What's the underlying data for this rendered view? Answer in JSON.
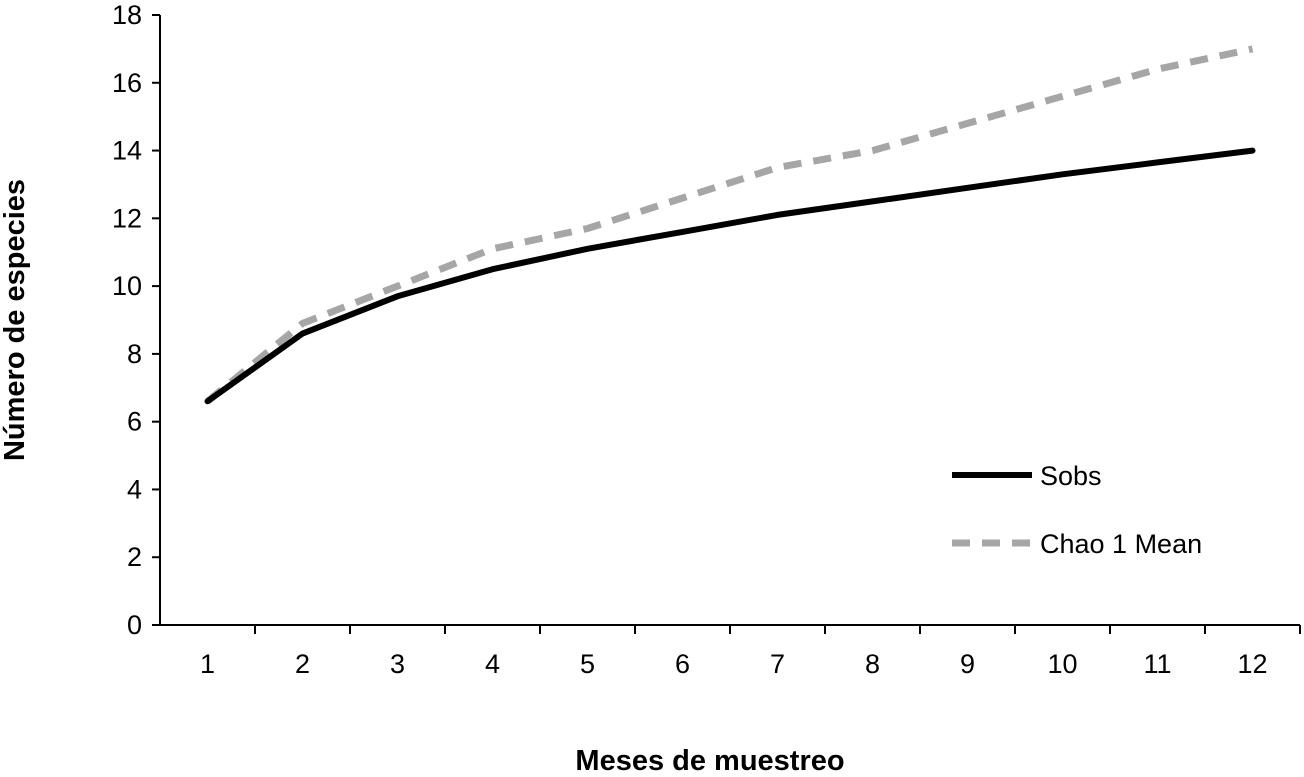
{
  "chart_data": {
    "type": "line",
    "title": "",
    "xlabel": "Meses de muestreo",
    "ylabel": "Número de especies",
    "x": [
      1,
      2,
      3,
      4,
      5,
      6,
      7,
      8,
      9,
      10,
      11,
      12
    ],
    "ylim": [
      0,
      18
    ],
    "yticks": [
      0,
      2,
      4,
      6,
      8,
      10,
      12,
      14,
      16,
      18
    ],
    "grid": false,
    "legend_position": "bottom-right",
    "series": [
      {
        "name": "Sobs",
        "values": [
          6.6,
          8.6,
          9.7,
          10.5,
          11.1,
          11.6,
          12.1,
          12.5,
          12.9,
          13.3,
          13.65,
          14.0
        ],
        "color": "#000000",
        "style": "solid"
      },
      {
        "name": "Chao 1 Mean",
        "values": [
          6.6,
          8.9,
          10.0,
          11.1,
          11.7,
          12.6,
          13.5,
          14.0,
          14.8,
          15.6,
          16.4,
          17.0
        ],
        "color": "#a6a6a6",
        "style": "dashed"
      }
    ]
  }
}
